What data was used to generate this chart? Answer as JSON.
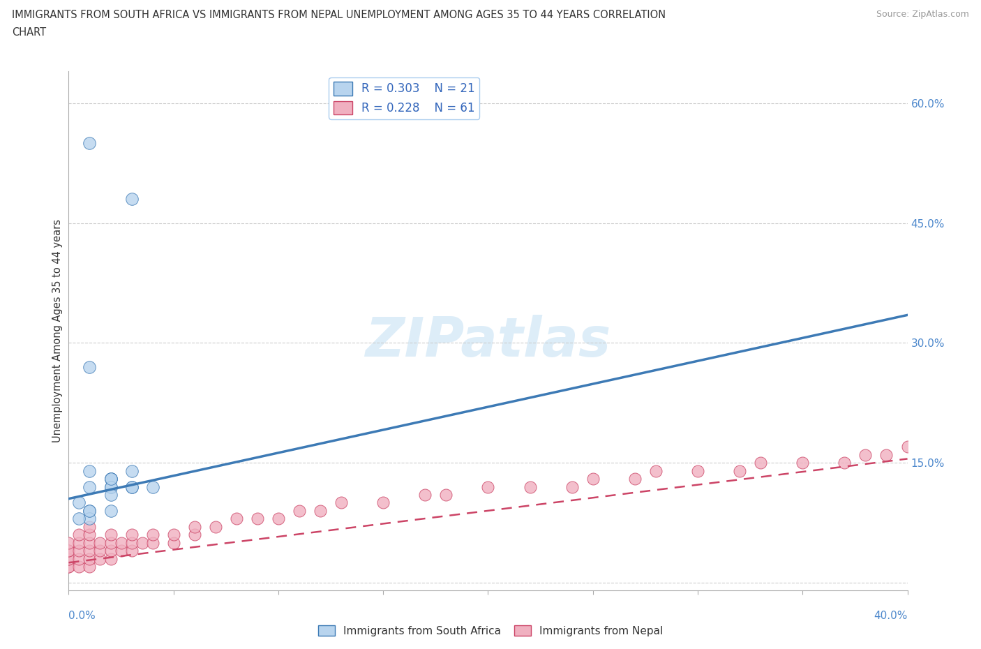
{
  "title_line1": "IMMIGRANTS FROM SOUTH AFRICA VS IMMIGRANTS FROM NEPAL UNEMPLOYMENT AMONG AGES 35 TO 44 YEARS CORRELATION",
  "title_line2": "CHART",
  "source": "Source: ZipAtlas.com",
  "ylabel": "Unemployment Among Ages 35 to 44 years",
  "xmin": 0.0,
  "xmax": 0.4,
  "ymin": -0.01,
  "ymax": 0.64,
  "blue_color": "#b8d4ee",
  "blue_line_color": "#3d7ab5",
  "pink_color": "#f0b0c0",
  "pink_line_color": "#cc4466",
  "watermark": "ZIPatlas",
  "legend_R1": "R = 0.303",
  "legend_N1": "N = 21",
  "legend_R2": "R = 0.228",
  "legend_N2": "N = 61",
  "legend_label1": "Immigrants from South Africa",
  "legend_label2": "Immigrants from Nepal",
  "sa_trend_x0": 0.0,
  "sa_trend_y0": 0.105,
  "sa_trend_x1": 0.4,
  "sa_trend_y1": 0.335,
  "np_trend_x0": 0.0,
  "np_trend_y0": 0.025,
  "np_trend_x1": 0.4,
  "np_trend_y1": 0.155,
  "south_africa_x": [
    0.01,
    0.03,
    0.01,
    0.02,
    0.01,
    0.02,
    0.03,
    0.04,
    0.02,
    0.01,
    0.02,
    0.03,
    0.005,
    0.01,
    0.02,
    0.01,
    0.03,
    0.02,
    0.01,
    0.005,
    0.02
  ],
  "south_africa_y": [
    0.55,
    0.48,
    0.27,
    0.13,
    0.14,
    0.13,
    0.14,
    0.12,
    0.12,
    0.12,
    0.12,
    0.12,
    0.1,
    0.09,
    0.09,
    0.08,
    0.12,
    0.11,
    0.09,
    0.08,
    0.13
  ],
  "nepal_x": [
    0.0,
    0.0,
    0.0,
    0.0,
    0.0,
    0.0,
    0.0,
    0.005,
    0.005,
    0.005,
    0.005,
    0.005,
    0.01,
    0.01,
    0.01,
    0.01,
    0.01,
    0.01,
    0.015,
    0.015,
    0.015,
    0.02,
    0.02,
    0.02,
    0.02,
    0.025,
    0.025,
    0.03,
    0.03,
    0.03,
    0.035,
    0.04,
    0.04,
    0.05,
    0.05,
    0.06,
    0.06,
    0.07,
    0.08,
    0.09,
    0.1,
    0.11,
    0.12,
    0.13,
    0.15,
    0.17,
    0.18,
    0.2,
    0.22,
    0.24,
    0.25,
    0.27,
    0.28,
    0.3,
    0.32,
    0.33,
    0.35,
    0.37,
    0.38,
    0.39,
    0.4
  ],
  "nepal_y": [
    0.02,
    0.02,
    0.03,
    0.03,
    0.04,
    0.04,
    0.05,
    0.02,
    0.03,
    0.04,
    0.05,
    0.06,
    0.02,
    0.03,
    0.04,
    0.05,
    0.06,
    0.07,
    0.03,
    0.04,
    0.05,
    0.03,
    0.04,
    0.05,
    0.06,
    0.04,
    0.05,
    0.04,
    0.05,
    0.06,
    0.05,
    0.05,
    0.06,
    0.05,
    0.06,
    0.06,
    0.07,
    0.07,
    0.08,
    0.08,
    0.08,
    0.09,
    0.09,
    0.1,
    0.1,
    0.11,
    0.11,
    0.12,
    0.12,
    0.12,
    0.13,
    0.13,
    0.14,
    0.14,
    0.14,
    0.15,
    0.15,
    0.15,
    0.16,
    0.16,
    0.17
  ]
}
